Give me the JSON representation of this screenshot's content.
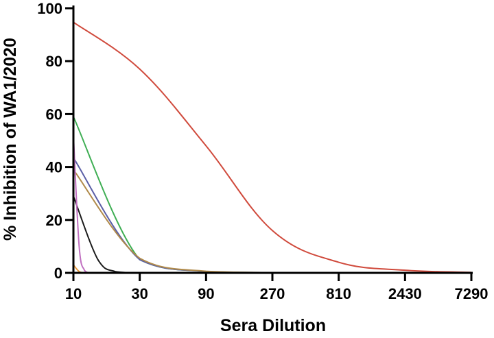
{
  "chart_data": {
    "type": "line",
    "title": "",
    "xlabel": "Sera Dilution",
    "ylabel": "% Inhibition of WA1/2020",
    "x_scale": "log3",
    "xlim": [
      10,
      7290
    ],
    "ylim": [
      0,
      100
    ],
    "x_ticks": [
      "10",
      "30",
      "90",
      "270",
      "810",
      "2430",
      "7290"
    ],
    "y_ticks": [
      "0",
      "20",
      "40",
      "60",
      "80",
      "100"
    ],
    "grid": false,
    "legend": "none",
    "series": [
      {
        "color": "#d04a3c",
        "x": [
          10,
          30,
          90,
          270,
          810,
          2430,
          7290
        ],
        "y": [
          94.7,
          77,
          48,
          16,
          4,
          1,
          0.2
        ]
      },
      {
        "color": "#3fae54",
        "x": [
          10,
          30,
          90,
          270,
          810
        ],
        "y": [
          59,
          5,
          0.5,
          0.1,
          0
        ]
      },
      {
        "color": "#5b5fa6",
        "x": [
          10,
          30,
          90,
          270,
          810
        ],
        "y": [
          43.5,
          5,
          0.5,
          0.1,
          0
        ]
      },
      {
        "color": "#b08a4a",
        "x": [
          10,
          30,
          90,
          270,
          810
        ],
        "y": [
          39,
          5.5,
          0.6,
          0.1,
          0
        ]
      },
      {
        "color": "#1a1a1a",
        "x": [
          10,
          15,
          20,
          30
        ],
        "y": [
          29,
          5,
          0.5,
          0
        ]
      },
      {
        "color": "#c06fc0",
        "x": [
          10,
          11,
          12,
          13
        ],
        "y": [
          52,
          10,
          1,
          0
        ]
      },
      {
        "color": "#e89a3a",
        "x": [
          10,
          11,
          12
        ],
        "y": [
          3,
          0.5,
          0
        ]
      }
    ]
  }
}
